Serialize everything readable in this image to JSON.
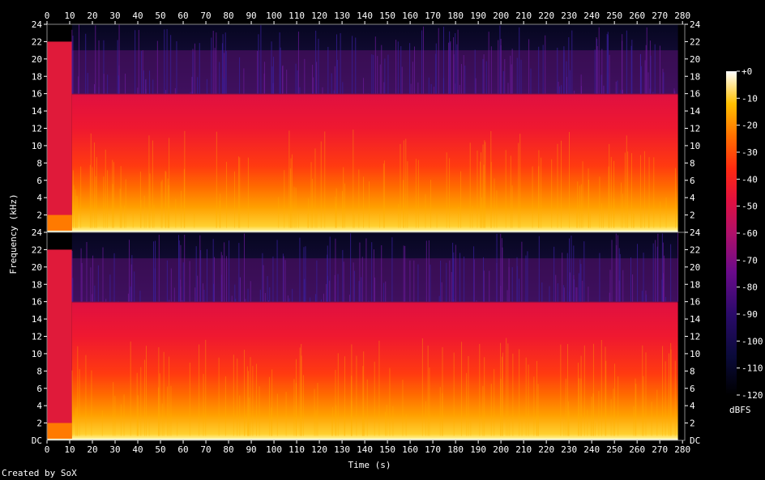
{
  "chart_data": {
    "type": "heatmap",
    "subtype": "spectrogram",
    "xlabel": "Time (s)",
    "ylabel": "Frequency (kHz)",
    "x_ticks": [
      0,
      10,
      20,
      30,
      40,
      50,
      60,
      70,
      80,
      90,
      100,
      110,
      120,
      130,
      140,
      150,
      160,
      170,
      180,
      190,
      200,
      210,
      220,
      230,
      240,
      250,
      260,
      270,
      280
    ],
    "xlim": [
      0,
      281
    ],
    "y_ticks": [
      2,
      4,
      6,
      8,
      10,
      12,
      14,
      16,
      18,
      20,
      22,
      24
    ],
    "y_bottom_label": "DC",
    "ylim_khz": [
      0,
      24
    ],
    "channels": 2,
    "colorbar": {
      "label": "dBFS",
      "ticks": [
        "+0",
        "-10",
        "-20",
        "-30",
        "-40",
        "-50",
        "-60",
        "-70",
        "-80",
        "-90",
        "-100",
        "-110",
        "-120"
      ],
      "range_db": [
        -120,
        0
      ]
    },
    "features": {
      "lowpass_cutoff_khz": 16,
      "high_band_activity_khz": [
        16,
        21
      ],
      "intro_segment_s": [
        0,
        11
      ],
      "intro_bandwidth_khz": 22,
      "audio_end_s": 278
    }
  },
  "credit": "Created by SoX"
}
